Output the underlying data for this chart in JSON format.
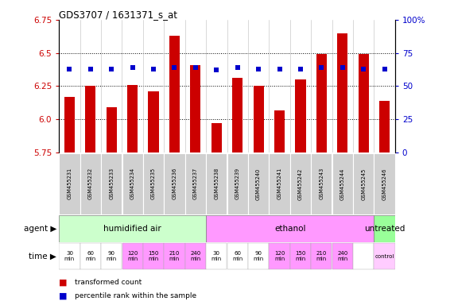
{
  "title": "GDS3707 / 1631371_s_at",
  "samples": [
    "GSM455231",
    "GSM455232",
    "GSM455233",
    "GSM455234",
    "GSM455235",
    "GSM455236",
    "GSM455237",
    "GSM455238",
    "GSM455239",
    "GSM455240",
    "GSM455241",
    "GSM455242",
    "GSM455243",
    "GSM455244",
    "GSM455245",
    "GSM455246"
  ],
  "bar_values": [
    6.17,
    6.25,
    6.09,
    6.26,
    6.21,
    6.63,
    6.41,
    5.97,
    6.31,
    6.25,
    6.07,
    6.3,
    6.49,
    6.65,
    6.49,
    6.14
  ],
  "dot_values": [
    63,
    63,
    63,
    64,
    63,
    64,
    64,
    62,
    64,
    63,
    63,
    63,
    64,
    64,
    63,
    63
  ],
  "ylim": [
    5.75,
    6.75
  ],
  "yticks": [
    5.75,
    6.0,
    6.25,
    6.5,
    6.75
  ],
  "y2lim": [
    0,
    100
  ],
  "y2ticks": [
    0,
    25,
    50,
    75,
    100
  ],
  "y2ticklabels": [
    "0",
    "25",
    "50",
    "75",
    "100%"
  ],
  "bar_color": "#cc0000",
  "dot_color": "#0000cc",
  "bar_bottom": 5.75,
  "agent_groups": [
    {
      "label": "humidified air",
      "start": 0,
      "end": 7,
      "color": "#ccffcc"
    },
    {
      "label": "ethanol",
      "start": 7,
      "end": 15,
      "color": "#ff99ff"
    },
    {
      "label": "untreated",
      "start": 15,
      "end": 16,
      "color": "#99ff99"
    }
  ],
  "time_labels": [
    "30\nmin",
    "60\nmin",
    "90\nmin",
    "120\nmin",
    "150\nmin",
    "210\nmin",
    "240\nmin",
    "30\nmin",
    "60\nmin",
    "90\nmin",
    "120\nmin",
    "150\nmin",
    "210\nmin",
    "240\nmin",
    "",
    "control"
  ],
  "time_colors": [
    "#ffffff",
    "#ffffff",
    "#ffffff",
    "#ff99ff",
    "#ff99ff",
    "#ff99ff",
    "#ff99ff",
    "#ffffff",
    "#ffffff",
    "#ffffff",
    "#ff99ff",
    "#ff99ff",
    "#ff99ff",
    "#ff99ff",
    "#ffffff",
    "#ffccff"
  ],
  "legend_items": [
    {
      "label": "transformed count",
      "color": "#cc0000"
    },
    {
      "label": "percentile rank within the sample",
      "color": "#0000cc"
    }
  ],
  "agent_label": "agent",
  "time_label": "time",
  "sample_bg": "#d0d0d0"
}
